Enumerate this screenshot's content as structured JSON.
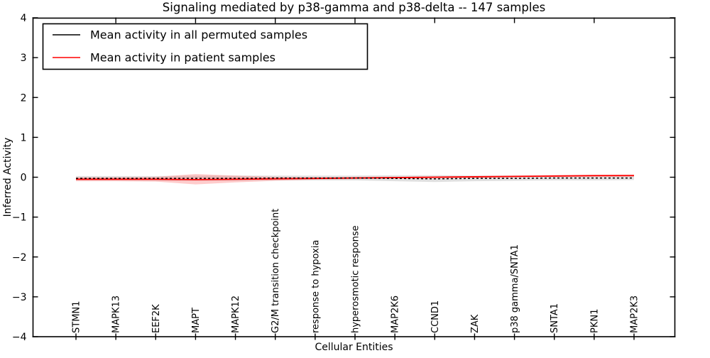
{
  "figure": {
    "background": "#ffffff"
  },
  "chart_data": {
    "type": "line",
    "title": "Signaling mediated by p38-gamma and p38-delta -- 147 samples",
    "xlabel": "Cellular Entities",
    "ylabel": "Inferred Activity",
    "ylim": [
      -4,
      4
    ],
    "yticks": [
      4,
      3,
      2,
      1,
      0,
      -1,
      -2,
      -3,
      -4
    ],
    "ytick_labels": [
      "4",
      "3",
      "2",
      "1",
      "0",
      "−1",
      "−2",
      "−3",
      "−4"
    ],
    "grid": false,
    "legend_position": "upper-left",
    "categories": [
      "STMN1",
      "MAPK13",
      "EEF2K",
      "MAPT",
      "MAPK12",
      "G2/M transition checkpoint",
      "response to hypoxia",
      "hyperosmotic response",
      "MAP2K6",
      "CCND1",
      "ZAK",
      "p38 gamma/SNTA1",
      "SNTA1",
      "PKN1",
      "MAP2K3"
    ],
    "series": [
      {
        "name": "Mean activity in all permuted samples",
        "color": "#000000",
        "line_style": "dashed",
        "values": [
          -0.03,
          -0.03,
          -0.03,
          -0.03,
          -0.03,
          -0.02,
          -0.02,
          -0.02,
          -0.03,
          -0.04,
          -0.03,
          -0.03,
          -0.02,
          -0.02,
          -0.02
        ]
      },
      {
        "name": "Mean activity in patient samples",
        "color": "#ff0000",
        "line_style": "solid",
        "values": [
          -0.05,
          -0.05,
          -0.05,
          -0.06,
          -0.05,
          -0.04,
          -0.03,
          -0.02,
          -0.01,
          0.0,
          0.01,
          0.02,
          0.03,
          0.04,
          0.04
        ]
      }
    ],
    "bands": [
      {
        "name": "permuted-samples-range",
        "color": "#999999",
        "opacity": 0.3,
        "upper": [
          0.03,
          0.03,
          0.03,
          0.04,
          0.04,
          0.04,
          0.04,
          0.04,
          0.05,
          0.05,
          0.04,
          0.04,
          0.04,
          0.03,
          0.03
        ],
        "lower": [
          -0.08,
          -0.08,
          -0.09,
          -0.09,
          -0.09,
          -0.08,
          -0.08,
          -0.08,
          -0.1,
          -0.12,
          -0.1,
          -0.09,
          -0.08,
          -0.08,
          -0.07
        ]
      },
      {
        "name": "patient-samples-range",
        "color": "#ff5555",
        "opacity": 0.3,
        "upper": [
          0.0,
          0.0,
          0.01,
          0.08,
          0.04,
          0.01,
          0.0,
          0.01,
          0.01,
          0.02,
          0.03,
          0.04,
          0.05,
          0.06,
          0.07
        ],
        "lower": [
          -0.1,
          -0.1,
          -0.11,
          -0.18,
          -0.13,
          -0.09,
          -0.06,
          -0.05,
          -0.03,
          -0.02,
          -0.01,
          0.0,
          0.01,
          0.01,
          0.02
        ]
      }
    ]
  }
}
